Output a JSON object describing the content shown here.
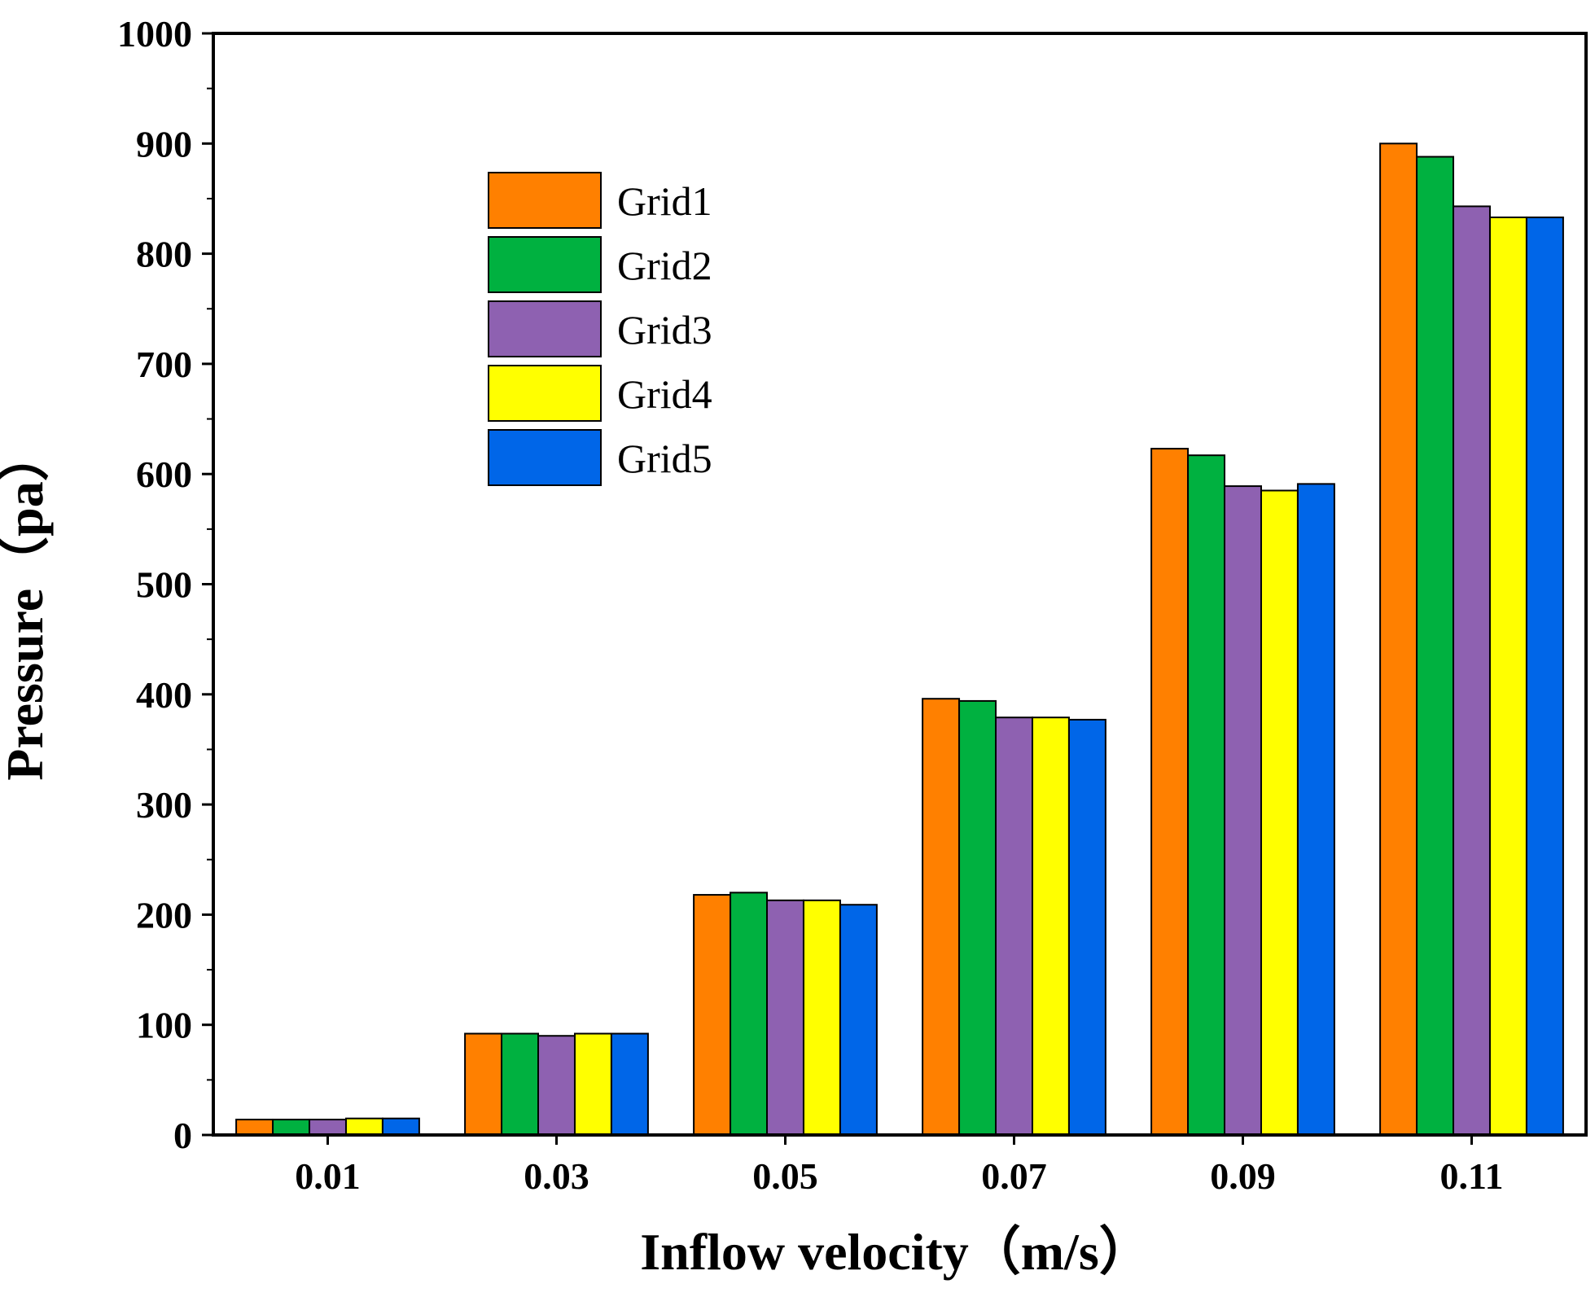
{
  "chart_data": {
    "type": "bar",
    "categories": [
      "0.01",
      "0.03",
      "0.05",
      "0.07",
      "0.09",
      "0.11"
    ],
    "series": [
      {
        "name": "Grid1",
        "color": "#FF8000",
        "values": [
          14,
          92,
          218,
          396,
          623,
          900
        ]
      },
      {
        "name": "Grid2",
        "color": "#00B140",
        "values": [
          14,
          92,
          220,
          394,
          617,
          888
        ]
      },
      {
        "name": "Grid3",
        "color": "#8E61B1",
        "values": [
          14,
          90,
          213,
          379,
          589,
          843
        ]
      },
      {
        "name": "Grid4",
        "color": "#FFFF00",
        "values": [
          15,
          92,
          213,
          379,
          585,
          833
        ]
      },
      {
        "name": "Grid5",
        "color": "#0066E8",
        "values": [
          15,
          92,
          209,
          377,
          591,
          833
        ]
      }
    ],
    "xlabel": "Inflow velocity（m/s）",
    "ylabel": "Pressure（pa）",
    "ylim": [
      0,
      1000
    ],
    "yticks": [
      0,
      100,
      200,
      300,
      400,
      500,
      600,
      700,
      800,
      900,
      1000
    ],
    "grid": false,
    "legend_position": "upper-left"
  }
}
